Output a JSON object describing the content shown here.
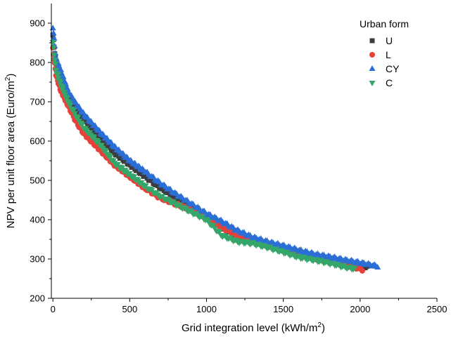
{
  "chart_data": {
    "type": "scatter",
    "xlabel": "Grid integration level (kWh/m",
    "xlabel_sup": "2",
    "xlabel_end": ")",
    "ylabel": "NPV per unit floor area (Euro/m",
    "ylabel_sup": "2",
    "ylabel_end": ")",
    "xlim": [
      -10,
      2500
    ],
    "ylim": [
      200,
      950
    ],
    "x_ticks": [
      0,
      500,
      1000,
      1500,
      2000,
      2500
    ],
    "y_ticks": [
      200,
      300,
      400,
      500,
      600,
      700,
      800,
      900
    ],
    "x_tick_labels": [
      "0",
      "500",
      "1000",
      "1500",
      "2000",
      "2500"
    ],
    "y_tick_labels": [
      "200",
      "300",
      "400",
      "500",
      "600",
      "700",
      "800",
      "900"
    ],
    "grid": false,
    "legend": {
      "title": "Urban form",
      "placement": "top-right"
    },
    "series": [
      {
        "name": "U",
        "marker": "square",
        "color": "#3c3c3c",
        "x_range": [
          0,
          2045
        ],
        "points": [
          [
            0,
            870
          ],
          [
            20,
            795
          ],
          [
            50,
            760
          ],
          [
            100,
            710
          ],
          [
            150,
            680
          ],
          [
            200,
            655
          ],
          [
            300,
            610
          ],
          [
            400,
            570
          ],
          [
            500,
            540
          ],
          [
            600,
            510
          ],
          [
            700,
            480
          ],
          [
            800,
            455
          ],
          [
            900,
            430
          ],
          [
            1000,
            405
          ],
          [
            1100,
            380
          ],
          [
            1200,
            360
          ],
          [
            1300,
            345
          ],
          [
            1400,
            335
          ],
          [
            1500,
            325
          ],
          [
            1600,
            315
          ],
          [
            1700,
            305
          ],
          [
            1800,
            298
          ],
          [
            1900,
            290
          ],
          [
            2000,
            282
          ],
          [
            2045,
            278
          ]
        ]
      },
      {
        "name": "L",
        "marker": "circle",
        "color": "#e8413a",
        "x_range": [
          0,
          2020
        ],
        "points": [
          [
            0,
            835
          ],
          [
            20,
            770
          ],
          [
            50,
            730
          ],
          [
            100,
            690
          ],
          [
            150,
            650
          ],
          [
            200,
            620
          ],
          [
            300,
            580
          ],
          [
            400,
            540
          ],
          [
            500,
            510
          ],
          [
            600,
            480
          ],
          [
            700,
            455
          ],
          [
            800,
            440
          ],
          [
            900,
            425
          ],
          [
            1000,
            405
          ],
          [
            1100,
            380
          ],
          [
            1200,
            360
          ],
          [
            1300,
            345
          ],
          [
            1400,
            335
          ],
          [
            1500,
            323
          ],
          [
            1600,
            312
          ],
          [
            1700,
            302
          ],
          [
            1800,
            295
          ],
          [
            1900,
            285
          ],
          [
            2000,
            275
          ],
          [
            2020,
            272
          ]
        ]
      },
      {
        "name": "CY",
        "marker": "triangle-up",
        "color": "#2b6fd6",
        "x_range": [
          0,
          2115
        ],
        "points": [
          [
            0,
            890
          ],
          [
            20,
            810
          ],
          [
            50,
            780
          ],
          [
            100,
            725
          ],
          [
            150,
            695
          ],
          [
            200,
            668
          ],
          [
            300,
            625
          ],
          [
            400,
            585
          ],
          [
            500,
            550
          ],
          [
            600,
            522
          ],
          [
            700,
            492
          ],
          [
            800,
            465
          ],
          [
            900,
            440
          ],
          [
            1000,
            415
          ],
          [
            1100,
            395
          ],
          [
            1200,
            372
          ],
          [
            1300,
            355
          ],
          [
            1400,
            343
          ],
          [
            1500,
            333
          ],
          [
            1600,
            322
          ],
          [
            1700,
            312
          ],
          [
            1800,
            305
          ],
          [
            1900,
            297
          ],
          [
            2000,
            290
          ],
          [
            2115,
            281
          ]
        ]
      },
      {
        "name": "C",
        "marker": "triangle-down",
        "color": "#34a66a",
        "x_range": [
          0,
          1970
        ],
        "points": [
          [
            0,
            850
          ],
          [
            20,
            780
          ],
          [
            50,
            745
          ],
          [
            100,
            700
          ],
          [
            150,
            665
          ],
          [
            200,
            635
          ],
          [
            300,
            595
          ],
          [
            400,
            545
          ],
          [
            500,
            515
          ],
          [
            600,
            485
          ],
          [
            700,
            460
          ],
          [
            800,
            440
          ],
          [
            900,
            420
          ],
          [
            1000,
            400
          ],
          [
            1100,
            360
          ],
          [
            1200,
            345
          ],
          [
            1300,
            340
          ],
          [
            1400,
            330
          ],
          [
            1500,
            318
          ],
          [
            1600,
            305
          ],
          [
            1700,
            298
          ],
          [
            1800,
            290
          ],
          [
            1900,
            280
          ],
          [
            1970,
            275
          ]
        ]
      }
    ]
  }
}
